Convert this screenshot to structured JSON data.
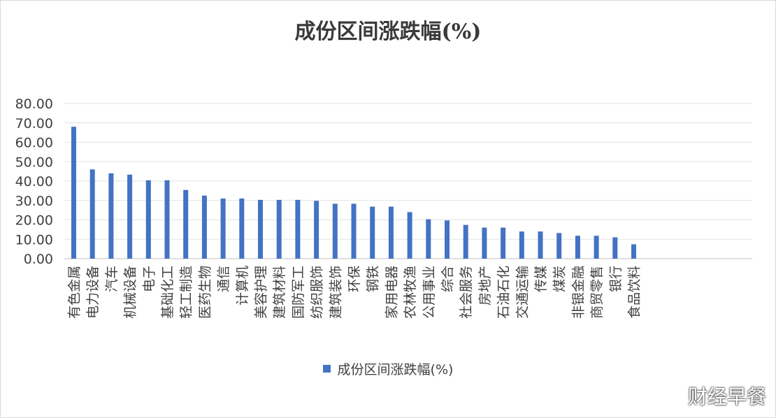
{
  "title": "成份区间涨跌幅(%)",
  "watermark": "财经早餐",
  "chart_data": {
    "type": "bar",
    "title": "成份区间涨跌幅(%)",
    "xlabel": "",
    "ylabel": "",
    "ylim": [
      0,
      80
    ],
    "yticks": [
      "0.00",
      "10.00",
      "20.00",
      "30.00",
      "40.00",
      "50.00",
      "60.00",
      "70.00",
      "80.00"
    ],
    "grid": true,
    "legend_position": "bottom",
    "bar_color": "#4472c4",
    "categories": [
      "有色金属",
      "电力设备",
      "汽车",
      "机械设备",
      "电子",
      "基础化工",
      "轻工制造",
      "医药生物",
      "通信",
      "计算机",
      "美容护理",
      "建筑材料",
      "国防军工",
      "纺织服饰",
      "建筑装饰",
      "环保",
      "钢铁",
      "家用电器",
      "农林牧渔",
      "公用事业",
      "综合",
      "社会服务",
      "房地产",
      "石油石化",
      "交通运输",
      "传媒",
      "煤炭",
      "非银金融",
      "商贸零售",
      "银行",
      "食品饮料"
    ],
    "series": [
      {
        "name": "成份区间涨跌幅(%)",
        "values": [
          68,
          46,
          44,
          43.3,
          40.4,
          40.4,
          35.4,
          32.5,
          31,
          31,
          30.3,
          30.3,
          30.3,
          29.8,
          28.3,
          28.3,
          26.8,
          26.8,
          24,
          20.3,
          19.7,
          17.4,
          16,
          16,
          14,
          14,
          13.2,
          11.8,
          11.8,
          11,
          7.4
        ]
      }
    ]
  }
}
